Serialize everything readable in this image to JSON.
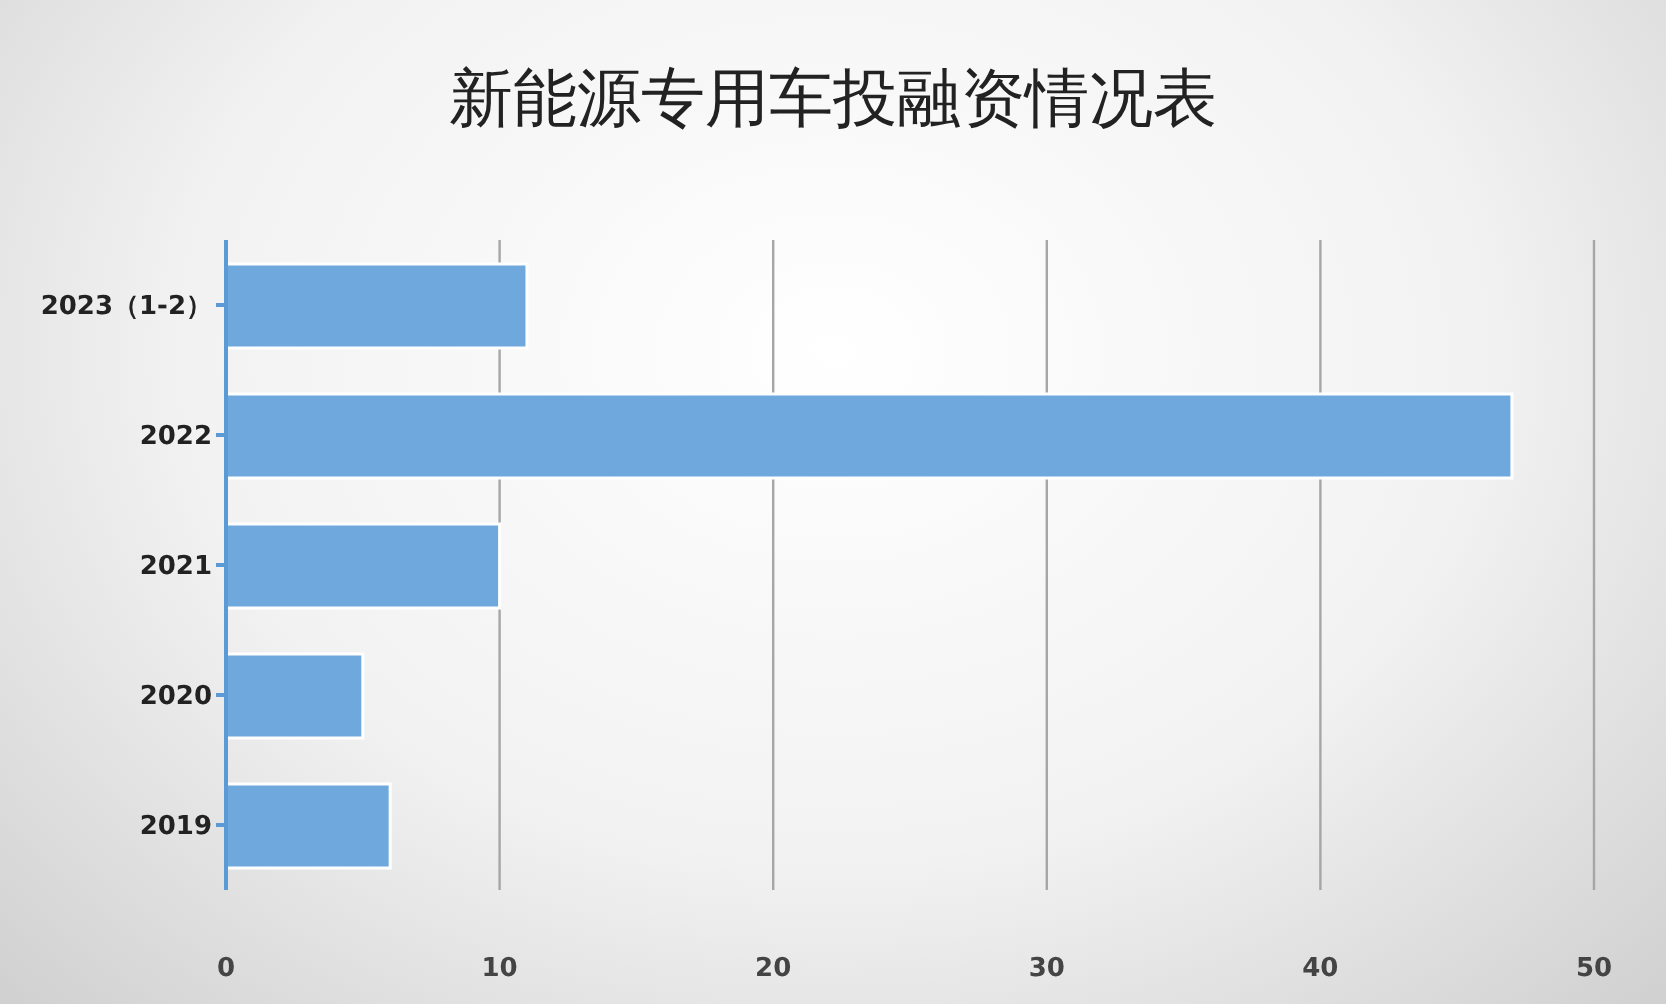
{
  "chart_data": {
    "type": "bar",
    "title": "新能源专用车投融资情况表",
    "orientation": "horizontal",
    "categories": [
      "2023（1-2）",
      "2022",
      "2021",
      "2020",
      "2019"
    ],
    "values": [
      11,
      47,
      10,
      5,
      6
    ],
    "color": "#6fa8dc",
    "xlim": [
      0,
      50
    ],
    "xticks": [
      0,
      10,
      20,
      30,
      40,
      50
    ],
    "grid": "x"
  }
}
